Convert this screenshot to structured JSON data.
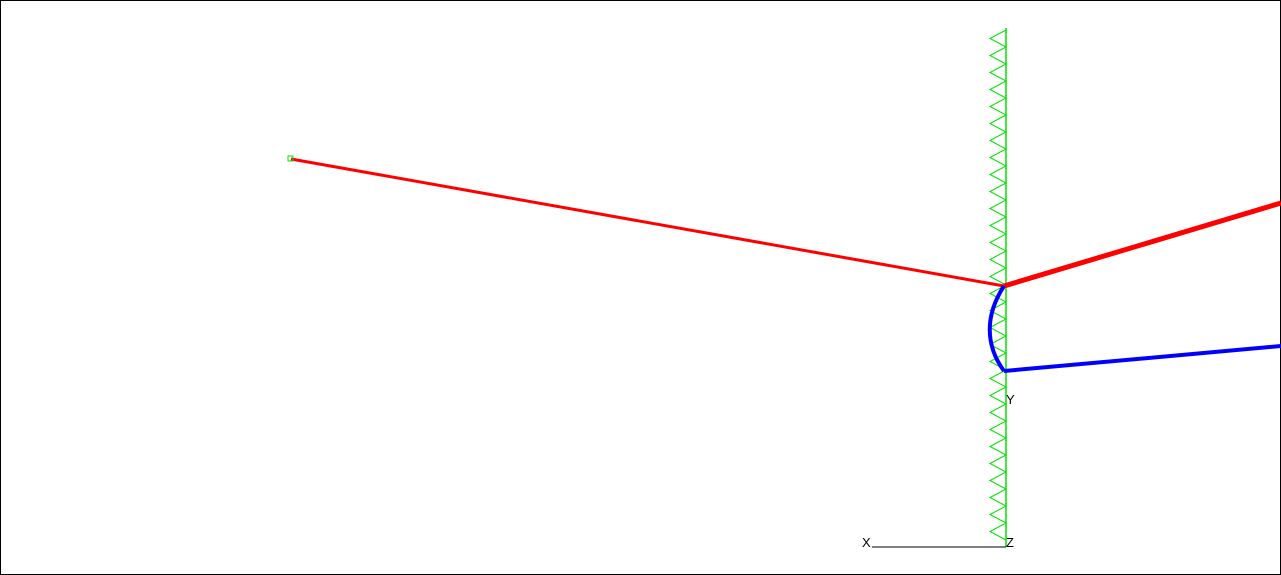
{
  "viewport": {
    "axes": {
      "x_label": "X",
      "y_label": "Y",
      "z_label": "Z"
    },
    "colors": {
      "background": "#ffffff",
      "border": "#000000",
      "support": "#00e000",
      "member_red": "#ff0000",
      "member_blue": "#0000ff",
      "axis_line": "#000000"
    }
  }
}
